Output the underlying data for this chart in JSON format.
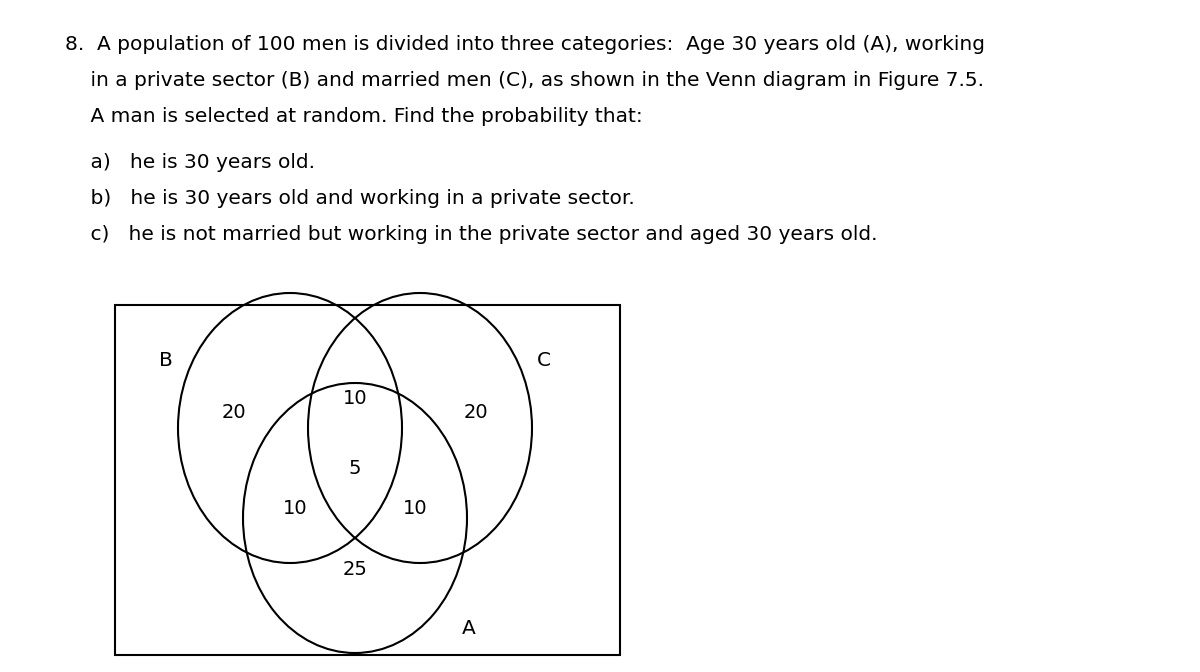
{
  "bg_color": "#ffffff",
  "text_color": "#000000",
  "line1": "8.  A population of 100 men is divided into three categories:  Age 30 years old (A), working",
  "line2": "    in a private sector (B) and married men (C), as shown in the Venn diagram in Figure 7.5.",
  "line3": "    A man is selected at random. Find the probability that:",
  "line4a": "    a)   he is 30 years old.",
  "line4b": "    b)   he is 30 years old and working in a private sector.",
  "line4c": "    c)   he is not married but working in the private sector and aged 30 years old.",
  "label_B": "B",
  "label_C": "C",
  "label_A": "A",
  "val_B_only": "20",
  "val_BC": "10",
  "val_C_only": "20",
  "val_center": "5",
  "val_AB": "10",
  "val_AC": "10",
  "val_A_only": "25",
  "font_size_text": 14.5,
  "font_size_num": 14.0,
  "font_size_label": 14.5
}
